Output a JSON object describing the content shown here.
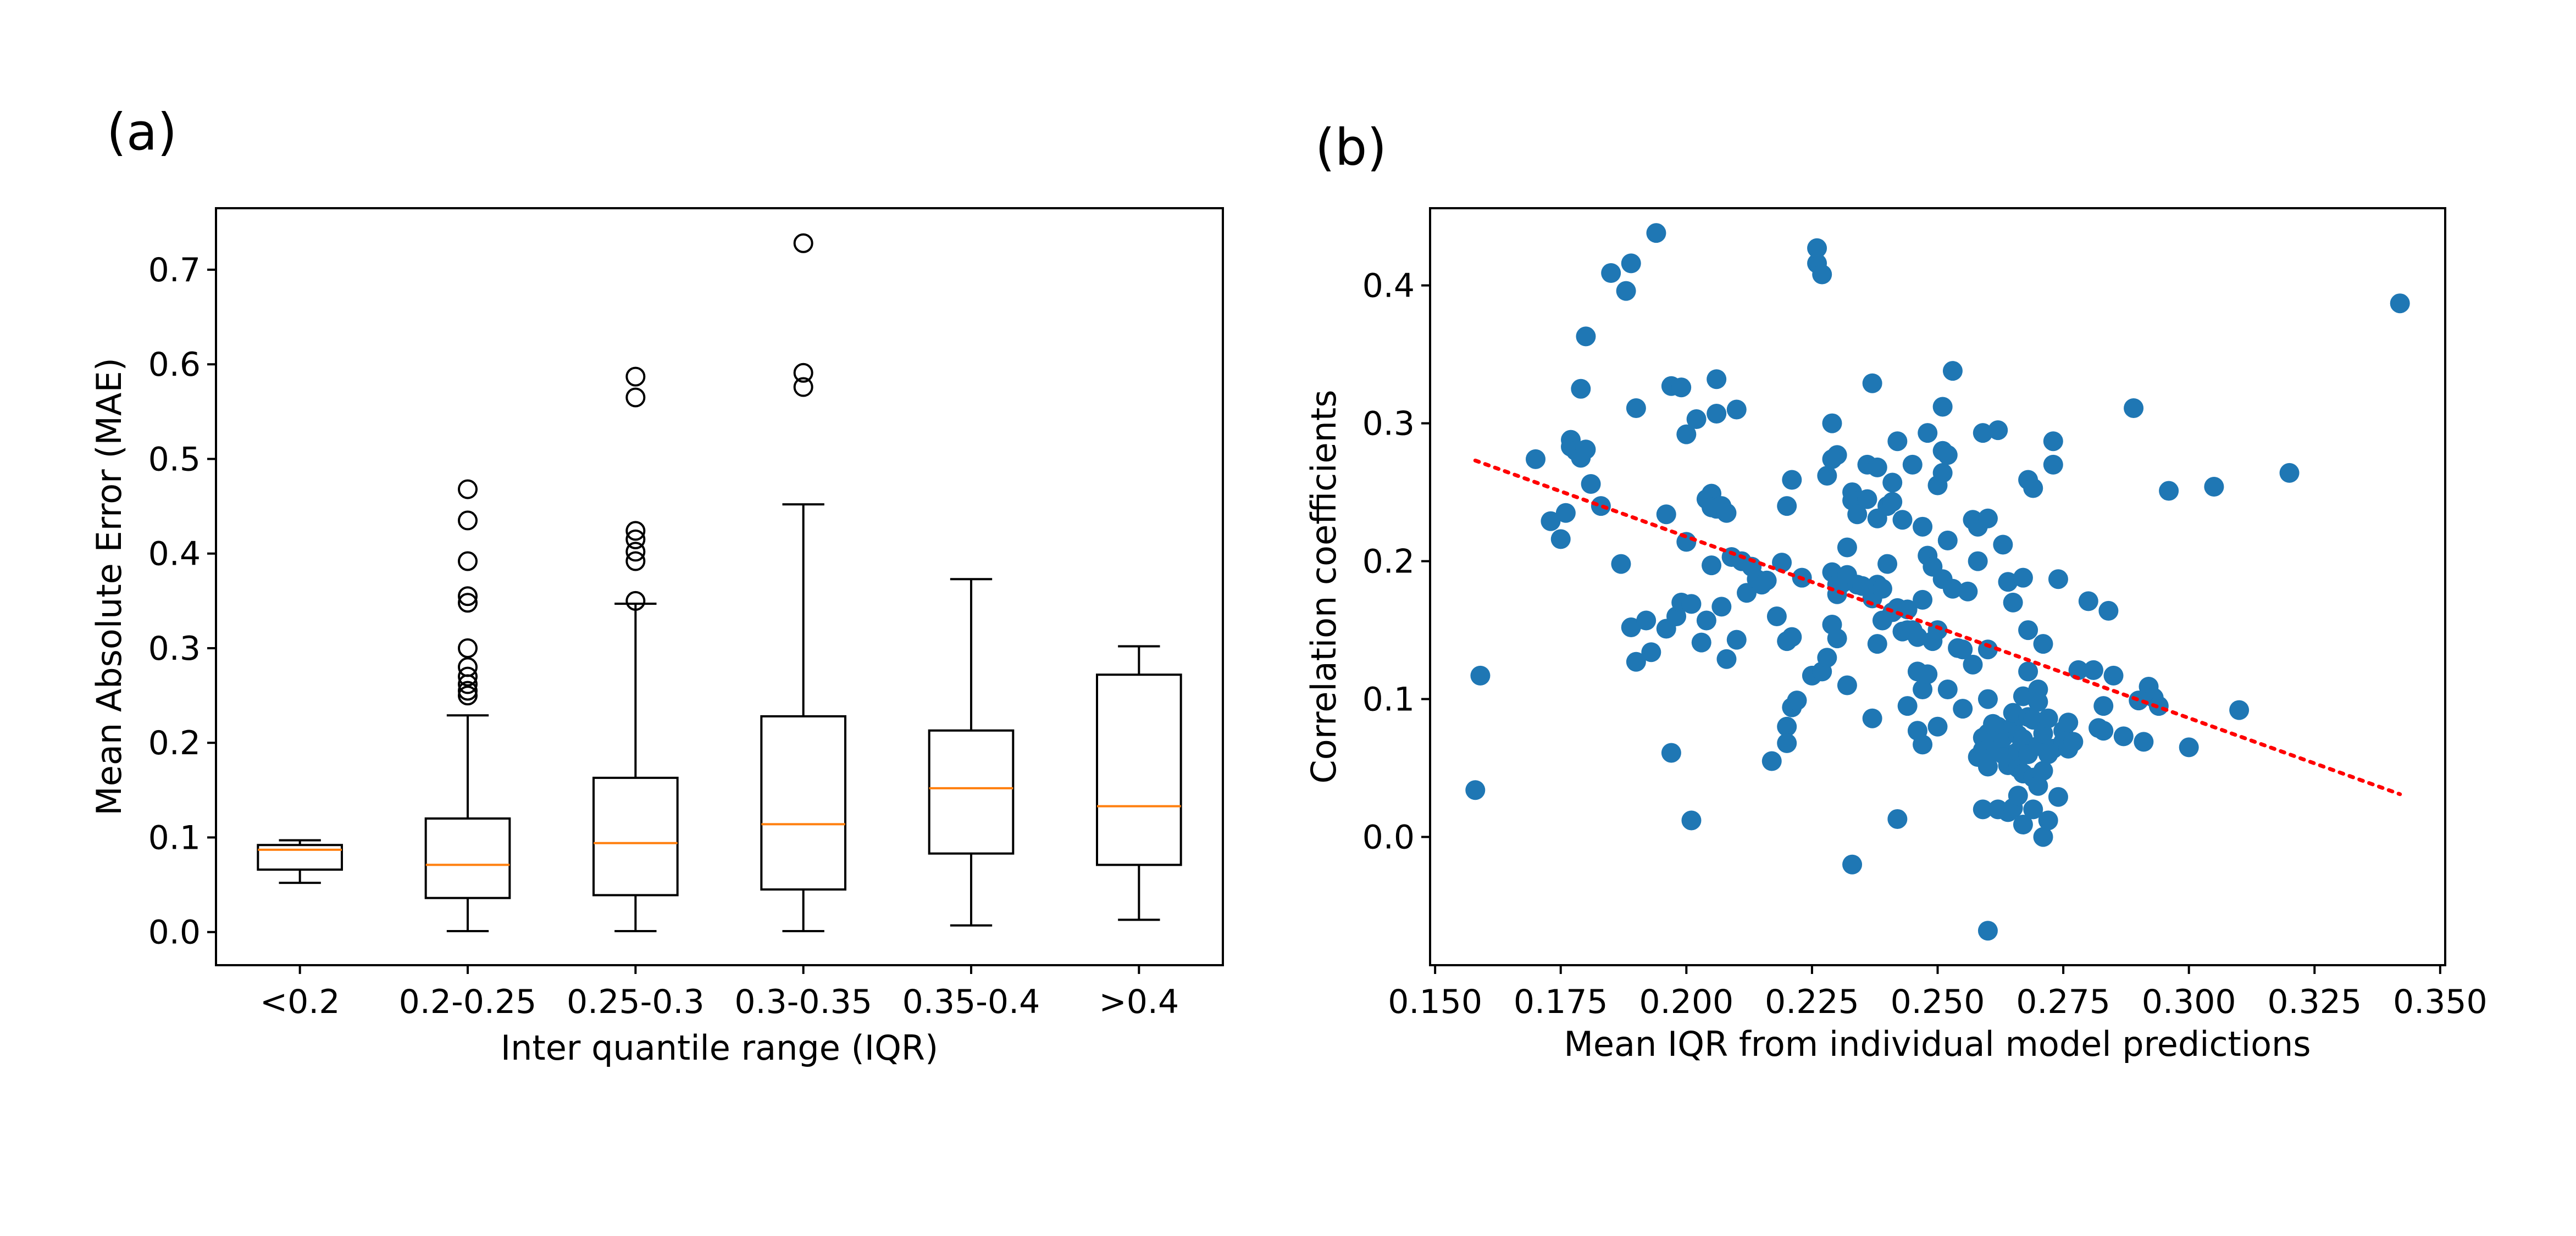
{
  "colors": {
    "box": "#000000",
    "median": "#ff7f0e",
    "scatter": "#1f77b4",
    "trend": "#ff0000"
  },
  "chart_data": [
    {
      "panel": "(a)",
      "type": "box",
      "xlabel": "Inter quantile range (IQR)",
      "ylabel": "Mean Absolute Error (MAE)",
      "ylim": [
        -0.035,
        0.765
      ],
      "yticks": [
        "0.0",
        "0.1",
        "0.2",
        "0.3",
        "0.4",
        "0.5",
        "0.6",
        "0.7"
      ],
      "categories": [
        "<0.2",
        "0.2-0.25",
        "0.25-0.3",
        "0.3-0.35",
        "0.35-0.4",
        ">0.4"
      ],
      "boxes": [
        {
          "whislo": 0.052,
          "q1": 0.066,
          "med": 0.087,
          "q3": 0.092,
          "whishi": 0.097,
          "fliers": []
        },
        {
          "whislo": 0.001,
          "q1": 0.036,
          "med": 0.071,
          "q3": 0.12,
          "whishi": 0.229,
          "fliers": [
            0.25,
            0.255,
            0.262,
            0.27,
            0.28,
            0.3,
            0.348,
            0.355,
            0.392,
            0.435,
            0.468
          ]
        },
        {
          "whislo": 0.001,
          "q1": 0.039,
          "med": 0.094,
          "q3": 0.163,
          "whishi": 0.347,
          "fliers": [
            0.35,
            0.392,
            0.402,
            0.415,
            0.424,
            0.565,
            0.587
          ]
        },
        {
          "whislo": 0.001,
          "q1": 0.045,
          "med": 0.114,
          "q3": 0.228,
          "whishi": 0.452,
          "fliers": [
            0.576,
            0.591,
            0.728
          ]
        },
        {
          "whislo": 0.007,
          "q1": 0.083,
          "med": 0.152,
          "q3": 0.213,
          "whishi": 0.373,
          "fliers": []
        },
        {
          "whislo": 0.013,
          "q1": 0.071,
          "med": 0.133,
          "q3": 0.272,
          "whishi": 0.302,
          "fliers": []
        }
      ]
    },
    {
      "panel": "(b)",
      "type": "scatter",
      "xlabel": "Mean IQR from individual model predictions",
      "ylabel": "Correlation coefficients",
      "xlim": [
        0.149,
        0.351
      ],
      "ylim": [
        -0.093,
        0.456
      ],
      "xticks": [
        "0.150",
        "0.175",
        "0.200",
        "0.225",
        "0.250",
        "0.275",
        "0.300",
        "0.325",
        "0.350"
      ],
      "yticks": [
        "0.0",
        "0.1",
        "0.2",
        "0.3",
        "0.4"
      ],
      "trendline": {
        "x": [
          0.158,
          0.342
        ],
        "y": [
          0.273,
          0.031
        ]
      },
      "points": [
        [
          0.158,
          0.034
        ],
        [
          0.159,
          0.117
        ],
        [
          0.17,
          0.274
        ],
        [
          0.173,
          0.229
        ],
        [
          0.175,
          0.216
        ],
        [
          0.176,
          0.235
        ],
        [
          0.177,
          0.283
        ],
        [
          0.177,
          0.288
        ],
        [
          0.178,
          0.28
        ],
        [
          0.179,
          0.275
        ],
        [
          0.179,
          0.325
        ],
        [
          0.18,
          0.363
        ],
        [
          0.18,
          0.281
        ],
        [
          0.181,
          0.256
        ],
        [
          0.183,
          0.24
        ],
        [
          0.185,
          0.409
        ],
        [
          0.187,
          0.198
        ],
        [
          0.188,
          0.396
        ],
        [
          0.189,
          0.416
        ],
        [
          0.189,
          0.152
        ],
        [
          0.19,
          0.311
        ],
        [
          0.19,
          0.127
        ],
        [
          0.192,
          0.157
        ],
        [
          0.193,
          0.134
        ],
        [
          0.194,
          0.438
        ],
        [
          0.196,
          0.234
        ],
        [
          0.196,
          0.151
        ],
        [
          0.197,
          0.061
        ],
        [
          0.197,
          0.327
        ],
        [
          0.198,
          0.16
        ],
        [
          0.199,
          0.326
        ],
        [
          0.199,
          0.17
        ],
        [
          0.2,
          0.214
        ],
        [
          0.2,
          0.292
        ],
        [
          0.201,
          0.169
        ],
        [
          0.201,
          0.012
        ],
        [
          0.202,
          0.303
        ],
        [
          0.203,
          0.141
        ],
        [
          0.204,
          0.157
        ],
        [
          0.204,
          0.245
        ],
        [
          0.205,
          0.249
        ],
        [
          0.205,
          0.239
        ],
        [
          0.205,
          0.197
        ],
        [
          0.206,
          0.307
        ],
        [
          0.206,
          0.332
        ],
        [
          0.206,
          0.238
        ],
        [
          0.207,
          0.167
        ],
        [
          0.207,
          0.24
        ],
        [
          0.208,
          0.235
        ],
        [
          0.208,
          0.129
        ],
        [
          0.209,
          0.203
        ],
        [
          0.21,
          0.31
        ],
        [
          0.21,
          0.143
        ],
        [
          0.211,
          0.2
        ],
        [
          0.212,
          0.177
        ],
        [
          0.213,
          0.196
        ],
        [
          0.214,
          0.187
        ],
        [
          0.215,
          0.183
        ],
        [
          0.216,
          0.186
        ],
        [
          0.217,
          0.055
        ],
        [
          0.218,
          0.16
        ],
        [
          0.219,
          0.199
        ],
        [
          0.22,
          0.142
        ],
        [
          0.22,
          0.08
        ],
        [
          0.22,
          0.068
        ],
        [
          0.22,
          0.24
        ],
        [
          0.221,
          0.259
        ],
        [
          0.221,
          0.094
        ],
        [
          0.221,
          0.145
        ],
        [
          0.222,
          0.099
        ],
        [
          0.223,
          0.188
        ],
        [
          0.225,
          0.117
        ],
        [
          0.226,
          0.416
        ],
        [
          0.226,
          0.427
        ],
        [
          0.227,
          0.408
        ],
        [
          0.227,
          0.12
        ],
        [
          0.228,
          0.13
        ],
        [
          0.228,
          0.262
        ],
        [
          0.229,
          0.3
        ],
        [
          0.229,
          0.192
        ],
        [
          0.229,
          0.154
        ],
        [
          0.229,
          0.274
        ],
        [
          0.23,
          0.144
        ],
        [
          0.23,
          0.277
        ],
        [
          0.23,
          0.176
        ],
        [
          0.23,
          0.183
        ],
        [
          0.231,
          0.184
        ],
        [
          0.232,
          0.11
        ],
        [
          0.232,
          0.19
        ],
        [
          0.232,
          0.21
        ],
        [
          0.233,
          -0.02
        ],
        [
          0.233,
          0.25
        ],
        [
          0.233,
          0.244
        ],
        [
          0.234,
          0.183
        ],
        [
          0.234,
          0.234
        ],
        [
          0.235,
          0.182
        ],
        [
          0.236,
          0.245
        ],
        [
          0.236,
          0.27
        ],
        [
          0.237,
          0.173
        ],
        [
          0.237,
          0.086
        ],
        [
          0.237,
          0.329
        ],
        [
          0.238,
          0.268
        ],
        [
          0.238,
          0.14
        ],
        [
          0.238,
          0.183
        ],
        [
          0.238,
          0.231
        ],
        [
          0.239,
          0.157
        ],
        [
          0.239,
          0.18
        ],
        [
          0.24,
          0.198
        ],
        [
          0.24,
          0.24
        ],
        [
          0.241,
          0.257
        ],
        [
          0.241,
          0.163
        ],
        [
          0.241,
          0.243
        ],
        [
          0.242,
          0.287
        ],
        [
          0.242,
          0.013
        ],
        [
          0.242,
          0.166
        ],
        [
          0.243,
          0.149
        ],
        [
          0.243,
          0.23
        ],
        [
          0.244,
          0.165
        ],
        [
          0.244,
          0.095
        ],
        [
          0.244,
          0.15
        ],
        [
          0.245,
          0.15
        ],
        [
          0.245,
          0.27
        ],
        [
          0.246,
          0.145
        ],
        [
          0.246,
          0.12
        ],
        [
          0.246,
          0.077
        ],
        [
          0.247,
          0.225
        ],
        [
          0.247,
          0.067
        ],
        [
          0.247,
          0.172
        ],
        [
          0.247,
          0.107
        ],
        [
          0.248,
          0.293
        ],
        [
          0.248,
          0.204
        ],
        [
          0.248,
          0.118
        ],
        [
          0.249,
          0.196
        ],
        [
          0.249,
          0.142
        ],
        [
          0.25,
          0.15
        ],
        [
          0.25,
          0.255
        ],
        [
          0.25,
          0.08
        ],
        [
          0.251,
          0.28
        ],
        [
          0.251,
          0.312
        ],
        [
          0.251,
          0.187
        ],
        [
          0.251,
          0.264
        ],
        [
          0.252,
          0.277
        ],
        [
          0.252,
          0.215
        ],
        [
          0.252,
          0.107
        ],
        [
          0.253,
          0.338
        ],
        [
          0.253,
          0.18
        ],
        [
          0.254,
          0.137
        ],
        [
          0.255,
          0.136
        ],
        [
          0.255,
          0.093
        ],
        [
          0.256,
          0.178
        ],
        [
          0.257,
          0.23
        ],
        [
          0.257,
          0.125
        ],
        [
          0.258,
          0.225
        ],
        [
          0.258,
          0.058
        ],
        [
          0.258,
          0.2
        ],
        [
          0.259,
          0.072
        ],
        [
          0.259,
          0.02
        ],
        [
          0.259,
          0.063
        ],
        [
          0.259,
          0.293
        ],
        [
          0.26,
          0.136
        ],
        [
          0.26,
          0.075
        ],
        [
          0.26,
          0.051
        ],
        [
          0.26,
          0.1
        ],
        [
          0.26,
          0.231
        ],
        [
          0.26,
          -0.068
        ],
        [
          0.261,
          0.082
        ],
        [
          0.261,
          0.066
        ],
        [
          0.261,
          0.069
        ],
        [
          0.262,
          0.08
        ],
        [
          0.262,
          0.062
        ],
        [
          0.262,
          0.295
        ],
        [
          0.262,
          0.02
        ],
        [
          0.263,
          0.212
        ],
        [
          0.263,
          0.06
        ],
        [
          0.263,
          0.072
        ],
        [
          0.264,
          0.018
        ],
        [
          0.264,
          0.052
        ],
        [
          0.264,
          0.077
        ],
        [
          0.264,
          0.185
        ],
        [
          0.265,
          0.06
        ],
        [
          0.265,
          0.08
        ],
        [
          0.265,
          0.09
        ],
        [
          0.265,
          0.17
        ],
        [
          0.265,
          0.021
        ],
        [
          0.266,
          0.05
        ],
        [
          0.266,
          0.062
        ],
        [
          0.266,
          0.074
        ],
        [
          0.266,
          0.03
        ],
        [
          0.267,
          0.071
        ],
        [
          0.267,
          0.102
        ],
        [
          0.267,
          0.046
        ],
        [
          0.267,
          0.009
        ],
        [
          0.267,
          0.188
        ],
        [
          0.268,
          0.087
        ],
        [
          0.268,
          0.06
        ],
        [
          0.268,
          0.12
        ],
        [
          0.268,
          0.259
        ],
        [
          0.268,
          0.15
        ],
        [
          0.269,
          0.02
        ],
        [
          0.269,
          0.085
        ],
        [
          0.269,
          0.043
        ],
        [
          0.269,
          0.253
        ],
        [
          0.27,
          0.066
        ],
        [
          0.27,
          0.037
        ],
        [
          0.27,
          0.107
        ],
        [
          0.27,
          0.098
        ],
        [
          0.271,
          0.0
        ],
        [
          0.271,
          0.075
        ],
        [
          0.271,
          0.048
        ],
        [
          0.271,
          0.14
        ],
        [
          0.272,
          0.06
        ],
        [
          0.272,
          0.086
        ],
        [
          0.272,
          0.012
        ],
        [
          0.273,
          0.287
        ],
        [
          0.273,
          0.064
        ],
        [
          0.273,
          0.27
        ],
        [
          0.274,
          0.187
        ],
        [
          0.274,
          0.029
        ],
        [
          0.275,
          0.069
        ],
        [
          0.275,
          0.077
        ],
        [
          0.276,
          0.083
        ],
        [
          0.276,
          0.064
        ],
        [
          0.277,
          0.069
        ],
        [
          0.278,
          0.121
        ],
        [
          0.28,
          0.171
        ],
        [
          0.281,
          0.121
        ],
        [
          0.282,
          0.079
        ],
        [
          0.283,
          0.077
        ],
        [
          0.283,
          0.095
        ],
        [
          0.284,
          0.164
        ],
        [
          0.285,
          0.117
        ],
        [
          0.287,
          0.073
        ],
        [
          0.289,
          0.311
        ],
        [
          0.29,
          0.099
        ],
        [
          0.291,
          0.069
        ],
        [
          0.292,
          0.109
        ],
        [
          0.293,
          0.101
        ],
        [
          0.294,
          0.095
        ],
        [
          0.296,
          0.251
        ],
        [
          0.3,
          0.065
        ],
        [
          0.305,
          0.254
        ],
        [
          0.31,
          0.092
        ],
        [
          0.32,
          0.264
        ],
        [
          0.342,
          0.387
        ]
      ]
    }
  ]
}
